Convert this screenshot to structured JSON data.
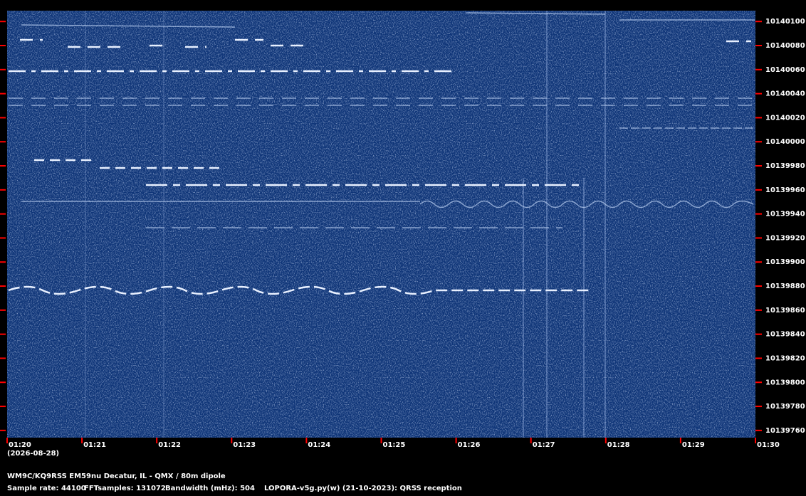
{
  "chart_data": {
    "type": "spectrogram",
    "xticks": [
      "01:20",
      "01:21",
      "01:22",
      "01:23",
      "01:24",
      "01:25",
      "01:26",
      "01:27",
      "01:28",
      "01:29",
      "01:30"
    ],
    "date": "(2026-08-28)",
    "ylim": [
      10139754,
      10140109
    ],
    "yticks": [
      10139760,
      10139780,
      10139800,
      10139820,
      10139840,
      10139860,
      10139880,
      10139900,
      10139920,
      10139940,
      10139960,
      10139980,
      10140000,
      10140020,
      10140040,
      10140060,
      10140080,
      10140100
    ],
    "tick_color": "#ff0000",
    "station": "WM9C/KQ9RSS EM59nu Decatur, IL - QMX / 80m dipole",
    "settings": [
      "Sample rate: 44100",
      "FFTsamples: 131072",
      "Bandwidth (mHz): 504"
    ],
    "software": "LOPORA-v5g.py(w) (21-10-2023): QRSS reception"
  }
}
